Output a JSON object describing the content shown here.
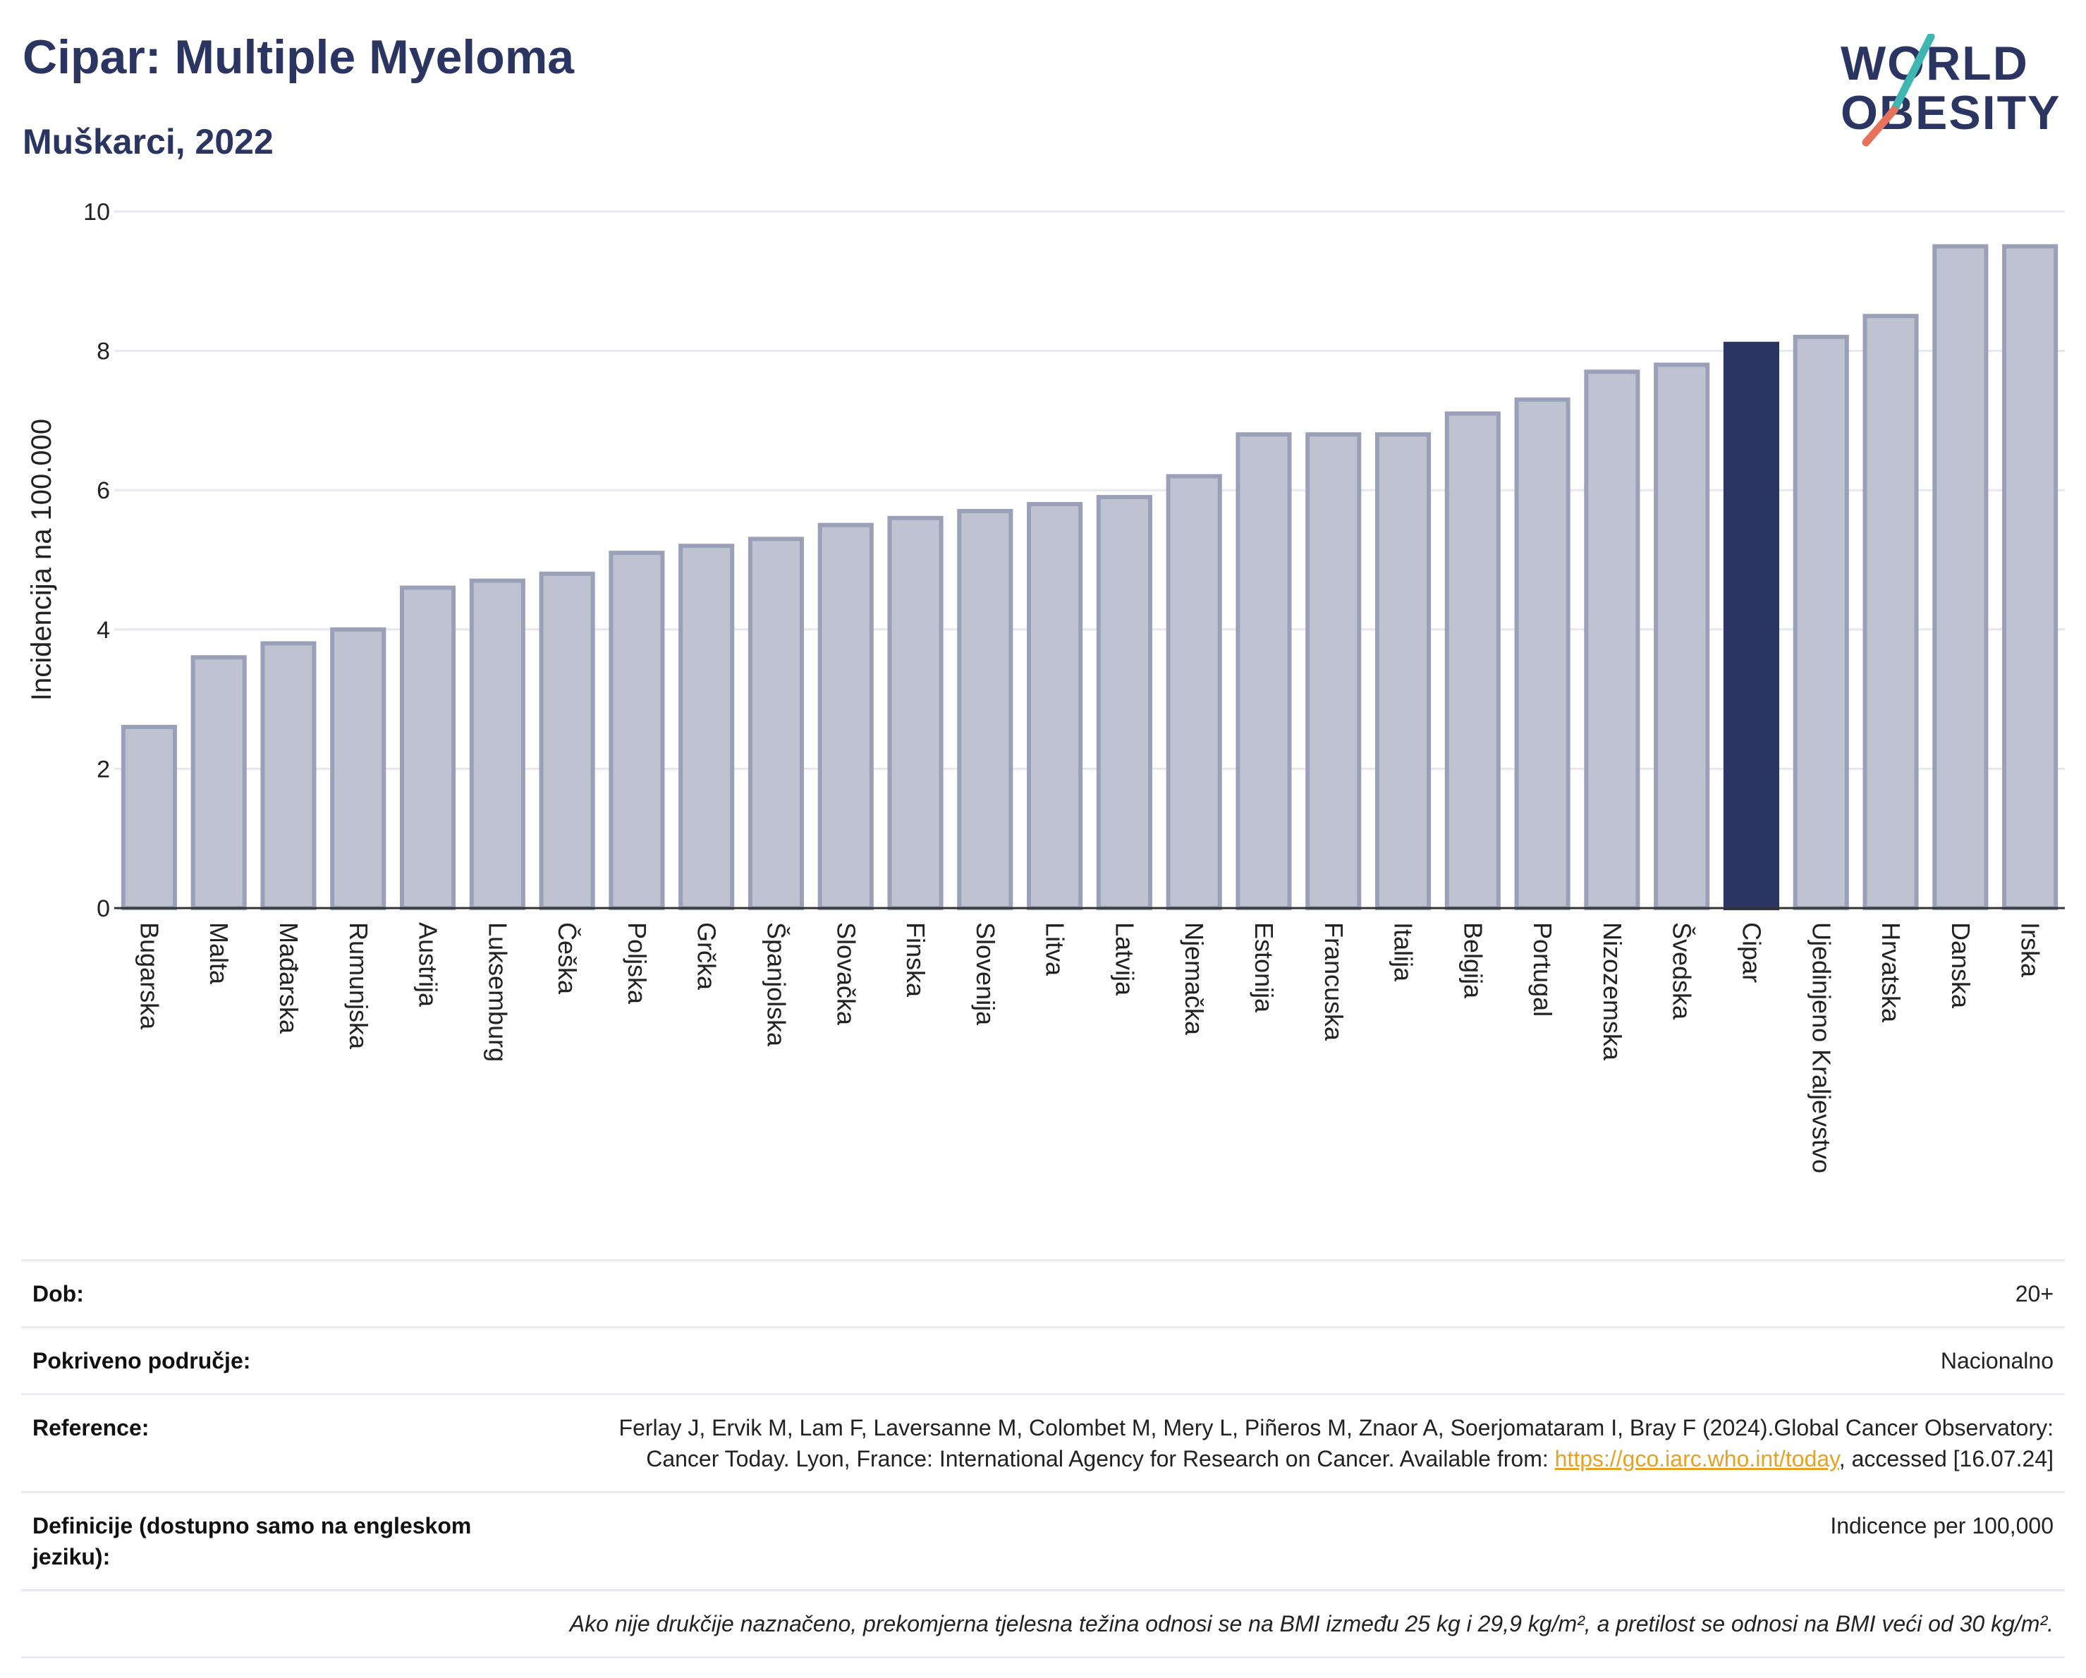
{
  "header": {
    "title": "Cipar: Multiple Myeloma",
    "subtitle": "Muškarci, 2022",
    "logo_line1": "WORLD",
    "logo_line2": "OBESITY"
  },
  "colors": {
    "highlight": "#2b3561",
    "bar_fill": "#bfc3d1",
    "bar_stroke": "#9aa0b8",
    "brand_accent": "#e8715b",
    "brand_teal": "#3fb6b2",
    "link": "#e6a323"
  },
  "chart_data": {
    "type": "bar",
    "ylabel": "Incidencija na 100.000",
    "ylim": [
      0,
      10
    ],
    "yticks": [
      0,
      2,
      4,
      6,
      8,
      10
    ],
    "grid": true,
    "highlight": "Cipar",
    "categories": [
      "Bugarska",
      "Malta",
      "Mađarska",
      "Rumunjska",
      "Austrija",
      "Luksemburg",
      "Češka",
      "Poljska",
      "Grčka",
      "Španjolska",
      "Slovačka",
      "Finska",
      "Slovenija",
      "Litva",
      "Latvija",
      "Njemačka",
      "Estonija",
      "Francuska",
      "Italija",
      "Belgija",
      "Portugal",
      "Nizozemska",
      "Švedska",
      "Cipar",
      "Ujedinjeno Kraljevstvo",
      "Hrvatska",
      "Danska",
      "Irska"
    ],
    "values": [
      2.6,
      3.6,
      3.8,
      4.0,
      4.6,
      4.7,
      4.8,
      5.1,
      5.2,
      5.3,
      5.5,
      5.6,
      5.7,
      5.8,
      5.9,
      6.2,
      6.8,
      6.8,
      6.8,
      7.1,
      7.3,
      7.7,
      7.8,
      8.1,
      8.2,
      8.5,
      9.5,
      9.5
    ]
  },
  "info": {
    "age_label": "Dob:",
    "age_value": "20+",
    "area_label": "Pokriveno područje:",
    "area_value": "Nacionalno",
    "ref_label": "Reference:",
    "ref_text_1": "Ferlay J, Ervik M, Lam F, Laversanne M, Colombet M, Mery L, Piñeros M, Znaor A, Soerjomataram I, Bray F (2024).Global Cancer Observatory: Cancer Today. Lyon, France: International Agency for Research on Cancer. Available from: ",
    "ref_link": "https://gco.iarc.who.int/today",
    "ref_text_2": ", accessed [16.07.24]",
    "def_label": "Definicije (dostupno samo na engleskom jeziku):",
    "def_value": "Indicence per 100,000",
    "note": "Ako nije drukčije naznačeno, prekomjerna tjelesna težina odnosi se na BMI između 25 kg i 29,9 kg/m², a pretilost se odnosi na BMI veći od 30 kg/m²."
  }
}
